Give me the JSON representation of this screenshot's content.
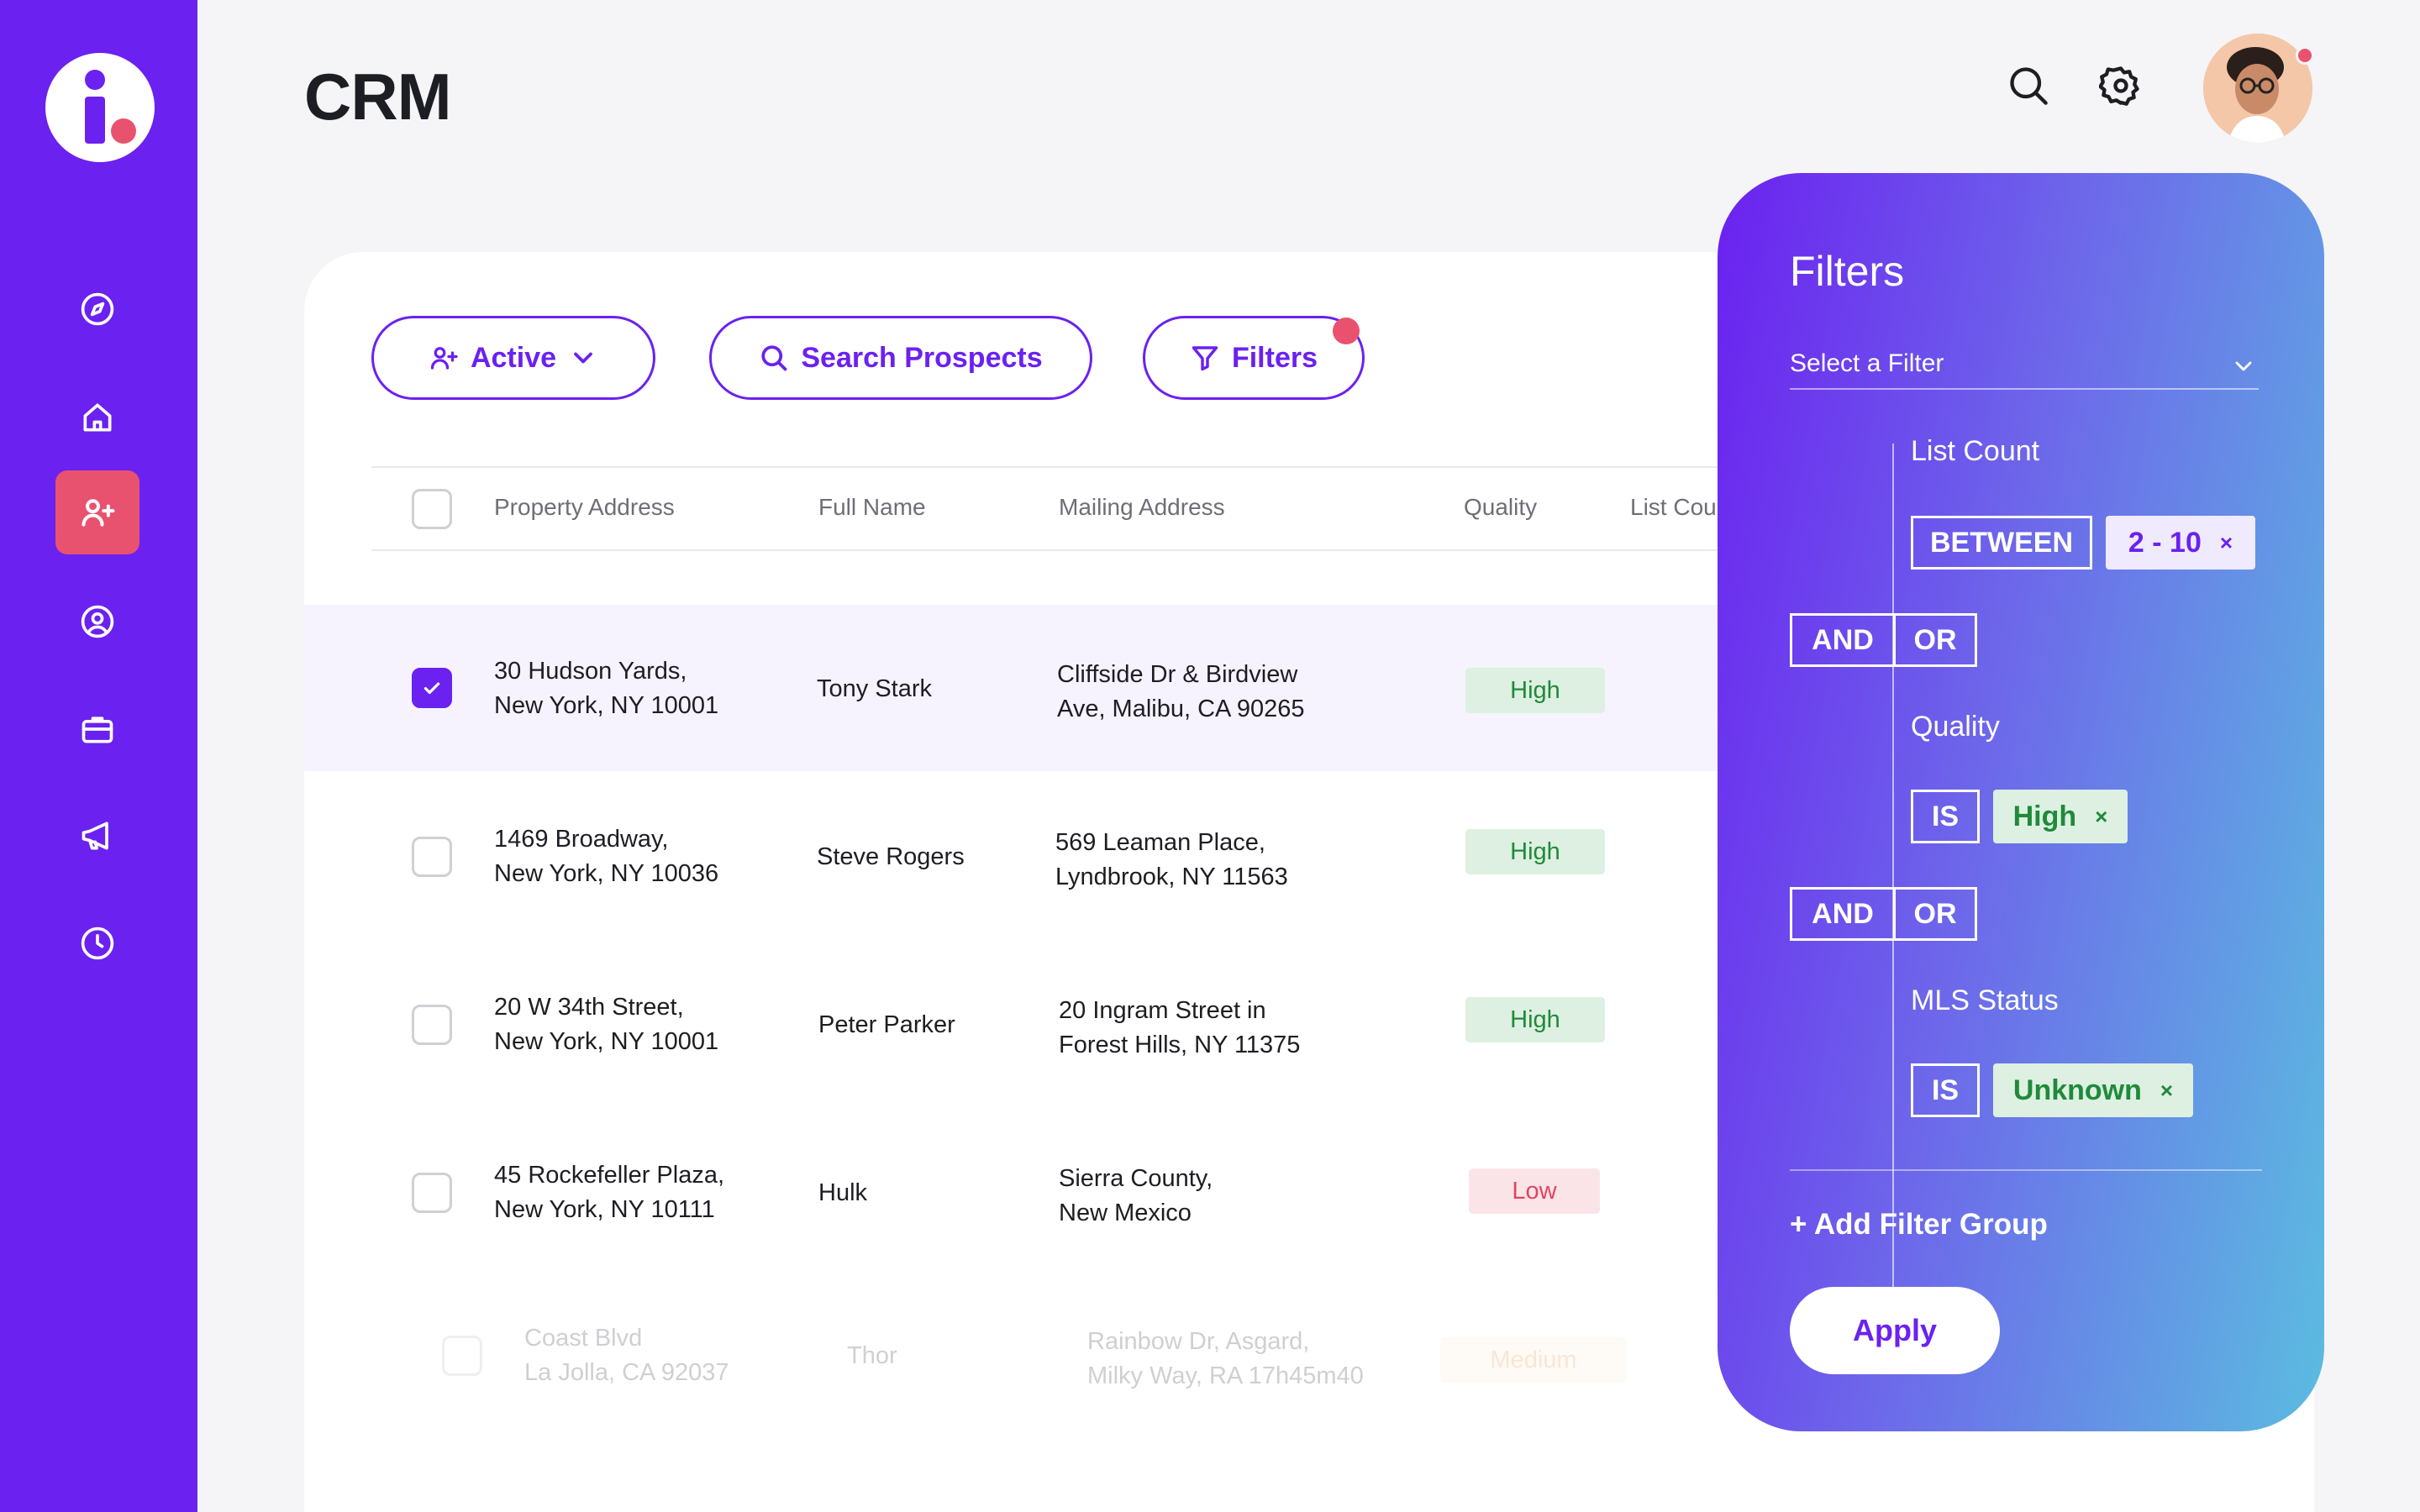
{
  "header": {
    "title": "CRM"
  },
  "toolbar": {
    "active_label": "Active",
    "search_label": "Search Prospects",
    "filters_label": "Filters"
  },
  "table": {
    "columns": [
      "Property Address",
      "Full Name",
      "Mailing Address",
      "Quality",
      "List Cou"
    ],
    "rows": [
      {
        "address": [
          "30 Hudson Yards,",
          "New York, NY 10001"
        ],
        "name": "Tony Stark",
        "mailing": [
          "Cliffside Dr & Birdview",
          "Ave, Malibu, CA 90265"
        ],
        "quality": "High",
        "checked": true
      },
      {
        "address": [
          "1469 Broadway,",
          "New York, NY 10036"
        ],
        "name": "Steve Rogers",
        "mailing": [
          "569 Leaman Place,",
          "Lyndbrook, NY 11563"
        ],
        "quality": "High",
        "checked": false
      },
      {
        "address": [
          "20 W 34th Street,",
          "New York, NY 10001"
        ],
        "name": "Peter Parker",
        "mailing": [
          "20 Ingram Street in",
          "Forest Hills, NY 11375"
        ],
        "quality": "High",
        "checked": false
      },
      {
        "address": [
          "45 Rockefeller Plaza,",
          "New York, NY 10111"
        ],
        "name": "Hulk",
        "mailing": [
          "Sierra County,",
          "New Mexico"
        ],
        "quality": "Low",
        "checked": false
      },
      {
        "address": [
          "Coast Blvd",
          "La Jolla, CA 92037"
        ],
        "name": "Thor",
        "mailing": [
          "Rainbow Dr, Asgard,",
          "Milky Way, RA 17h45m40"
        ],
        "quality": "Medium",
        "checked": false
      }
    ]
  },
  "filters": {
    "title": "Filters",
    "select_placeholder": "Select a Filter",
    "groups": [
      {
        "field": "List Count",
        "operator": "BETWEEN",
        "value": "2 - 10"
      },
      {
        "field": "Quality",
        "operator": "IS",
        "value": "High"
      },
      {
        "field": "MLS Status",
        "operator": "IS",
        "value": "Unknown"
      }
    ],
    "and_label": "AND",
    "or_label": "OR",
    "remove_symbol": "×",
    "add_group": "+ Add Filter Group",
    "apply": "Apply"
  },
  "colors": {
    "sidebar": "#6b21f0",
    "accent_pink": "#e9526e",
    "high": "#1f8a3a",
    "low": "#e0455f",
    "medium": "#f3b27a"
  },
  "icons": {
    "sidebar": [
      "compass-icon",
      "home-icon",
      "add-user-icon",
      "user-circle-icon",
      "briefcase-icon",
      "megaphone-icon",
      "clock-icon"
    ],
    "header": [
      "search-icon",
      "gear-icon"
    ]
  }
}
